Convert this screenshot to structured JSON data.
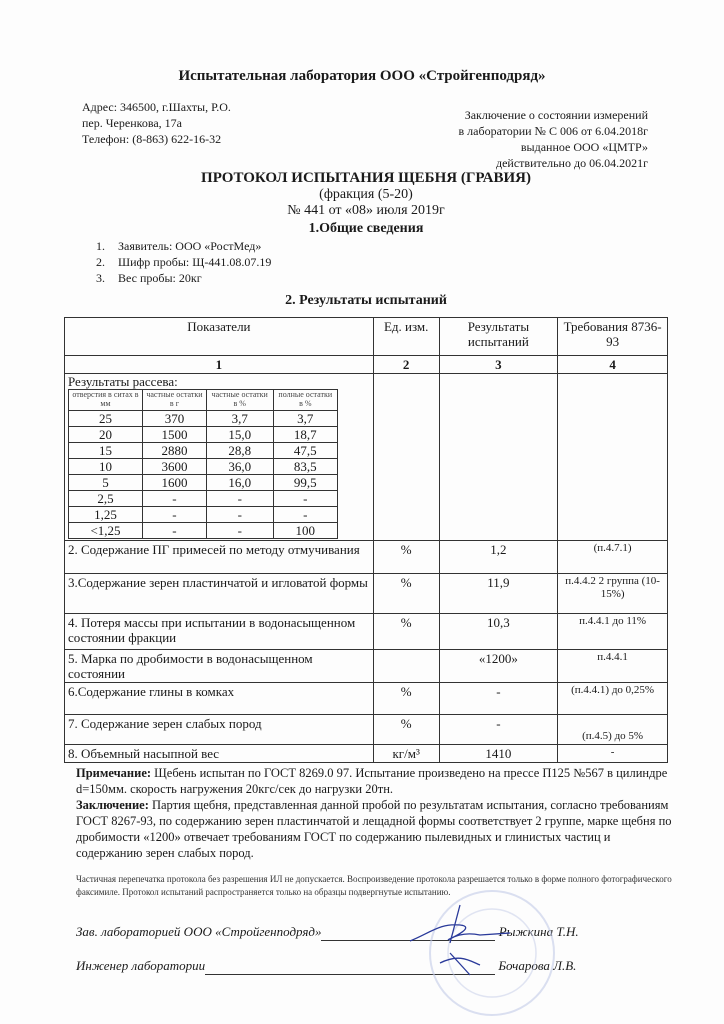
{
  "header": {
    "lab_title": "Испытательная лаборатория ООО «Стройгенподряд»",
    "address": [
      "Адрес: 346500, г.Шахты, Р.О.",
      "пер. Черенкова, 17а",
      "Телефон: (8-863) 622-16-32"
    ],
    "certificate": [
      "Заключение  о  состоянии измерений",
      "в лаборатории № С 006 от 6.04.2018г",
      "выданное ООО «ЦМТР»",
      "действительно до 06.04.2021г"
    ]
  },
  "protocol": {
    "title": "ПРОТОКОЛ  ИСПЫТАНИЯ ЩЕБНЯ (ГРАВИЯ)",
    "fraction": "(фракция (5-20)",
    "number": "№ 441 от «08» июля 2019г"
  },
  "section1": {
    "title": "1.Общие сведения",
    "items": [
      {
        "n": "1.",
        "text": "Заявитель: ООО «РостМед»"
      },
      {
        "n": "2.",
        "text": "Шифр пробы: Щ-441.08.07.19"
      },
      {
        "n": "3.",
        "text": "Вес пробы: 20кг"
      }
    ]
  },
  "section2": {
    "title": "2. Результаты испытаний",
    "headers": [
      "Показатели",
      "Ед. изм.",
      "Результаты испытаний",
      "Требования 8736-93"
    ],
    "col_numbers": [
      "1",
      "2",
      "3",
      "4"
    ],
    "sieve": {
      "title": "Результаты рассева:",
      "headers": [
        "отверстия в ситах в мм",
        "частные остатки в г",
        "частные остатки в %",
        "полные остатки в %"
      ],
      "rows": [
        [
          "25",
          "370",
          "3,7",
          "3,7"
        ],
        [
          "20",
          "1500",
          "15,0",
          "18,7"
        ],
        [
          "15",
          "2880",
          "28,8",
          "47,5"
        ],
        [
          "10",
          "3600",
          "36,0",
          "83,5"
        ],
        [
          "5",
          "1600",
          "16,0",
          "99,5"
        ],
        [
          "2,5",
          "-",
          "-",
          "-"
        ],
        [
          "1,25",
          "-",
          "-",
          "-"
        ],
        [
          "<1,25",
          "-",
          "-",
          "100"
        ]
      ]
    },
    "rows": [
      {
        "name": "2. Содержание ПГ примесей по методу отмучивания",
        "unit": "%",
        "result": "1,2",
        "req": "(п.4.7.1)"
      },
      {
        "name": "3.Содержание зерен пластинчатой и игловатой формы",
        "unit": "%",
        "result": "11,9",
        "req": "п.4.4.2 2 группа (10-15%)"
      },
      {
        "name": "4. Потеря массы при испытании в водонасыщенном состоянии фракции",
        "unit": "%",
        "result": "10,3",
        "req": "п.4.4.1 до 11%"
      },
      {
        "name": "5. Марка по дробимости в водонасыщенном состоянии",
        "unit": "",
        "result": "«1200»",
        "req": "п.4.4.1"
      },
      {
        "name": "6.Содержание глины в комках",
        "unit": "%",
        "result": "-",
        "req": "(п.4.4.1) до 0,25%"
      },
      {
        "name": "7. Содержание зерен слабых пород",
        "unit": "%",
        "result": "-",
        "req": "(п.4.5) до 5%"
      },
      {
        "name": "8. Объемный насыпной вес",
        "unit": "кг/м³",
        "result": "1410",
        "req": "-"
      }
    ]
  },
  "notes": {
    "note_label": "Примечание:",
    "note_text": " Щебень испытан по ГОСТ 8269.0 97.  Испытание произведено на прессе П125 №567 в цилиндре  d=150мм. скорость нагружения 20кгс/сек до нагрузки 20тн.",
    "conclusion_label": "Заключение:",
    "conclusion_text": " Партия щебня, представленная данной пробой по результатам испытания, согласно требованиям ГОСТ 8267-93, по содержанию зерен пластинчатой и лещадной формы соответствует 2 группе, марке щебня по дробимости «1200» отвечает требованиям ГОСТ по содержанию пылевидных и глинистых частиц и содержанию зерен слабых пород.",
    "fine_print": "Частичная перепечатка протокола без разрешения ИЛ не допускается. Воспроизведение протокола разрешается только в форме полного  фотографического факсимиле. Протокол испытаний распространяется только на образцы подвергнутые испытанию."
  },
  "signatures": [
    {
      "role": "Зав. лабораторией ООО «Стройгенподряд»",
      "name": "Рыжкина Т.Н."
    },
    {
      "role": "Инженер лаборатории",
      "name": "Бочарова Л.В."
    }
  ],
  "colors": {
    "stamp": "#9aa6d8",
    "signature": "#2a3a9a"
  }
}
